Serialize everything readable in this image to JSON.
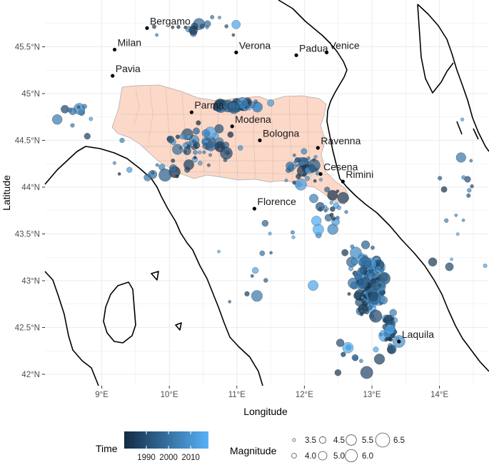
{
  "chart_data": {
    "type": "scatter",
    "axes": {
      "x_label": "Longitude",
      "y_label": "Latitude",
      "x_ticks": [
        "9°E",
        "10°E",
        "11°E",
        "12°E",
        "13°E",
        "14°E"
      ],
      "y_ticks": [
        "42°N",
        "42.5°N",
        "43°N",
        "43.5°N",
        "44°N",
        "44.5°N",
        "45°N",
        "45.5°N"
      ],
      "x_range": [
        8.25,
        14.85
      ],
      "y_range": [
        41.85,
        45.95
      ],
      "grid": true
    },
    "cities": [
      {
        "name": "Bergamo",
        "lon": 9.67,
        "lat": 45.7
      },
      {
        "name": "Milan",
        "lon": 9.19,
        "lat": 45.47
      },
      {
        "name": "Pavia",
        "lon": 9.16,
        "lat": 45.19
      },
      {
        "name": "Verona",
        "lon": 10.99,
        "lat": 45.44
      },
      {
        "name": "Padua",
        "lon": 11.88,
        "lat": 45.41
      },
      {
        "name": "Venice",
        "lon": 12.33,
        "lat": 45.44
      },
      {
        "name": "Parma",
        "lon": 10.33,
        "lat": 44.8
      },
      {
        "name": "Modena",
        "lon": 10.93,
        "lat": 44.65
      },
      {
        "name": "Bologna",
        "lon": 11.34,
        "lat": 44.5
      },
      {
        "name": "Ravenna",
        "lon": 12.2,
        "lat": 44.42
      },
      {
        "name": "Cesena",
        "lon": 12.24,
        "lat": 44.14
      },
      {
        "name": "Rimini",
        "lon": 12.57,
        "lat": 44.06
      },
      {
        "name": "Florence",
        "lon": 11.26,
        "lat": 43.77
      },
      {
        "name": "Laquila",
        "lon": 13.4,
        "lat": 42.35
      }
    ],
    "legend": {
      "time": {
        "title": "Time",
        "ticks": [
          1990,
          2000,
          2010
        ],
        "range": [
          1980,
          2018
        ],
        "colors": [
          "#132B43",
          "#56B1F7"
        ]
      },
      "magnitude": {
        "title": "Magnitude",
        "levels": [
          3.5,
          4.0,
          4.5,
          5.0,
          5.5,
          6.0,
          6.5
        ],
        "labels": [
          "3.5",
          "4.0",
          "4.5",
          "5.0",
          "5.5",
          "6.0",
          "6.5"
        ]
      }
    },
    "earthquakes": [
      {
        "lon": 12.8,
        "lat": 43.05,
        "mag": 4.5,
        "year": 2016
      },
      {
        "lon": 12.9,
        "lat": 42.95,
        "mag": 5.5,
        "year": 2016
      },
      {
        "lon": 13.1,
        "lat": 42.8,
        "mag": 6.0,
        "year": 2016
      },
      {
        "lon": 13.0,
        "lat": 42.7,
        "mag": 5.0,
        "year": 2016
      },
      {
        "lon": 13.2,
        "lat": 42.6,
        "mag": 4.5,
        "year": 2017
      },
      {
        "lon": 13.3,
        "lat": 42.45,
        "mag": 5.0,
        "year": 2009
      },
      {
        "lon": 13.4,
        "lat": 42.35,
        "mag": 6.0,
        "year": 2009
      },
      {
        "lon": 12.7,
        "lat": 43.2,
        "mag": 5.5,
        "year": 1997
      },
      {
        "lon": 12.85,
        "lat": 43.1,
        "mag": 5.0,
        "year": 1997
      },
      {
        "lon": 12.6,
        "lat": 43.3,
        "mag": 4.5,
        "year": 1984
      },
      {
        "lon": 11.1,
        "lat": 44.87,
        "mag": 5.5,
        "year": 2012
      },
      {
        "lon": 11.3,
        "lat": 44.86,
        "mag": 5.0,
        "year": 2012
      },
      {
        "lon": 10.8,
        "lat": 44.88,
        "mag": 4.5,
        "year": 2012
      },
      {
        "lon": 11.5,
        "lat": 44.9,
        "mag": 4.5,
        "year": 2012
      },
      {
        "lon": 10.4,
        "lat": 44.6,
        "mag": 4.5,
        "year": 1996
      },
      {
        "lon": 12.1,
        "lat": 44.2,
        "mag": 5.0,
        "year": 1990
      },
      {
        "lon": 11.8,
        "lat": 44.2,
        "mag": 4.5,
        "year": 2000
      },
      {
        "lon": 13.9,
        "lat": 43.2,
        "mag": 5.0,
        "year": 1985
      },
      {
        "lon": 9.3,
        "lat": 44.5,
        "mag": 4.0,
        "year": 2005
      },
      {
        "lon": 8.7,
        "lat": 44.8,
        "mag": 4.5,
        "year": 1995
      }
    ]
  }
}
